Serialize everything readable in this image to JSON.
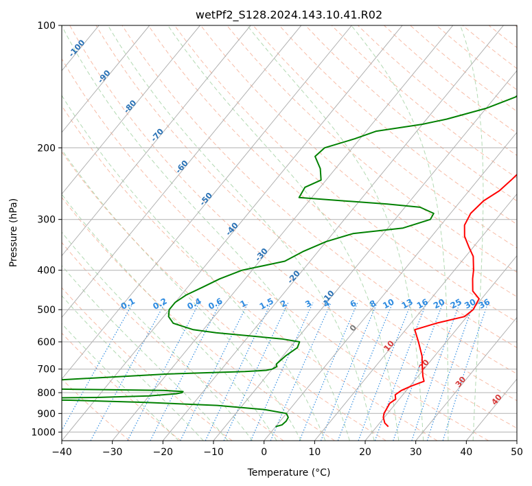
{
  "chart_data": {
    "type": "skew-t",
    "title": "wetPf2_S128.2024.143.10.41.R02",
    "xlabel": "Temperature (°C)",
    "ylabel": "Pressure (hPa)",
    "xlim": [
      -40,
      50
    ],
    "ylim": [
      1050,
      100
    ],
    "x_ticks": [
      -40,
      -30,
      -20,
      -10,
      0,
      10,
      20,
      30,
      40,
      50
    ],
    "y_ticks": [
      100,
      200,
      300,
      400,
      500,
      600,
      700,
      800,
      900,
      1000
    ],
    "y_scale": "log",
    "grid": true,
    "skew_lines_every_c": 10,
    "temperature": {
      "color": "#ff0000",
      "pressure": [
        970,
        950,
        920,
        900,
        870,
        850,
        830,
        810,
        790,
        770,
        750,
        730,
        700,
        650,
        600,
        560,
        540,
        520,
        500,
        470,
        450,
        420,
        400,
        370,
        350,
        330,
        310,
        290,
        270,
        255,
        240,
        220,
        200,
        170,
        150,
        130,
        110,
        100
      ],
      "temp_c": [
        22.3,
        21.0,
        19.8,
        19.3,
        19.0,
        18.8,
        19.3,
        18.5,
        19.0,
        20.3,
        22.0,
        21.0,
        19.7,
        17.5,
        14.5,
        11.8,
        15.0,
        19.5,
        20.1,
        19.5,
        17.0,
        15.0,
        13.8,
        11.5,
        9.0,
        6.5,
        4.7,
        4.0,
        4.5,
        6.0,
        6.6,
        7.3,
        7.0,
        7.0,
        7.8,
        8.5,
        10.5,
        12.2
      ]
    },
    "dewpoint": {
      "color": "#008000",
      "pressure": [
        970,
        960,
        940,
        920,
        900,
        880,
        860,
        845,
        835,
        830,
        826,
        822,
        815,
        805,
        800,
        795,
        790,
        785,
        780,
        760,
        750,
        720,
        710,
        705,
        700,
        690,
        680,
        650,
        620,
        600,
        590,
        570,
        560,
        540,
        520,
        500,
        480,
        460,
        440,
        420,
        400,
        380,
        360,
        340,
        325,
        315,
        300,
        290,
        280,
        275,
        265,
        250,
        240,
        225,
        210,
        200,
        190,
        182,
        175,
        170,
        160,
        150,
        140,
        130,
        120,
        110,
        100
      ],
      "dewpoint_c": [
        0.0,
        1.0,
        1.2,
        1.0,
        0.0,
        -5.0,
        -15.0,
        -30.0,
        -45.0,
        -60.0,
        -60.0,
        -40.0,
        -30.0,
        -25.0,
        -24.0,
        -24.0,
        -28.0,
        -45.0,
        -60.0,
        -60.0,
        -55.0,
        -30.0,
        -15.0,
        -11.0,
        -10.0,
        -9.5,
        -10.0,
        -9.5,
        -8.5,
        -9.0,
        -13.0,
        -27.0,
        -32.0,
        -37.0,
        -39.0,
        -40.0,
        -40.0,
        -39.0,
        -37.0,
        -35.0,
        -32.0,
        -25.0,
        -23.0,
        -20.0,
        -16.0,
        -7.0,
        -3.0,
        -3.3,
        -7.0,
        -14.0,
        -32.5,
        -33.0,
        -31.0,
        -33.0,
        -36.0,
        -35.5,
        -31.0,
        -28.0,
        -20.0,
        -16.0,
        -10.0,
        -6.0,
        -5.0,
        -4.0,
        -3.0,
        -1.0,
        0.0
      ]
    },
    "dry_adiabat_labels": [
      "-100",
      "-90",
      "-80",
      "-70",
      "-60",
      "-50",
      "-40",
      "-30",
      "-20",
      "-10"
    ],
    "moist_adiabat_labels": [
      "0",
      "10",
      "20",
      "30",
      "40"
    ],
    "mixing_ratio_labels": [
      "0.1",
      "0.2",
      "0.4",
      "0.6",
      "1",
      "1.5",
      "2",
      "3",
      "4",
      "6",
      "8",
      "10",
      "13",
      "16",
      "20",
      "25",
      "30",
      "36"
    ]
  }
}
